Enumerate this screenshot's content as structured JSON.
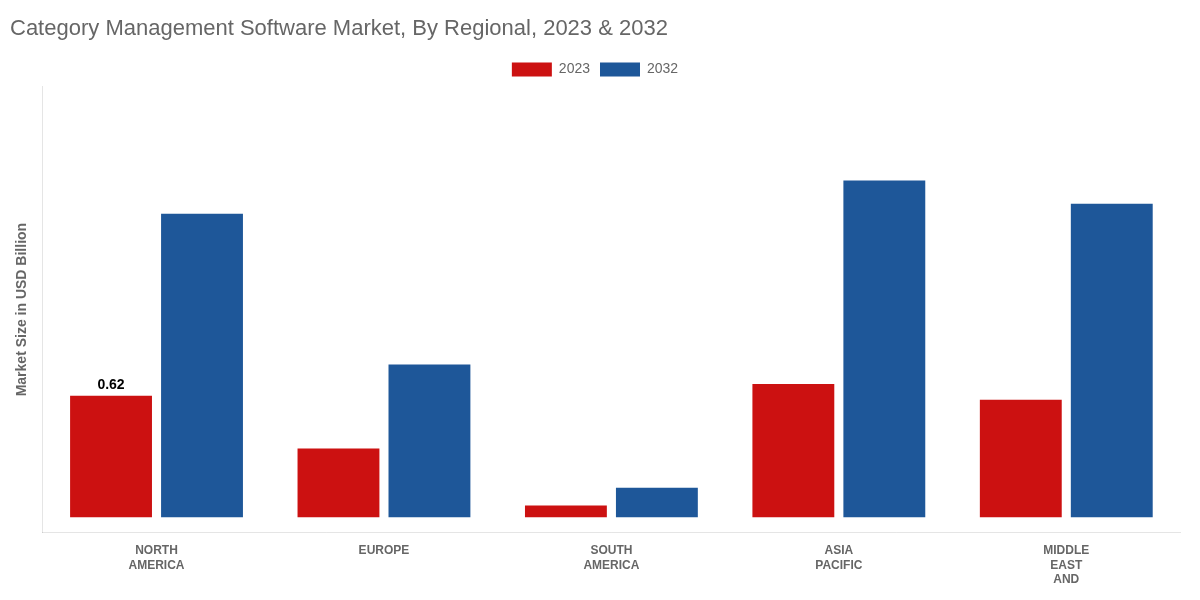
{
  "chart_data": {
    "type": "bar",
    "title": "Category Management Software Market, By Regional, 2023 & 2032",
    "y_label": "Market Size in USD Billion",
    "categories": [
      "NORTH\nAMERICA",
      "EUROPE",
      "SOUTH\nAMERICA",
      "ASIA\nPACIFIC",
      "MIDDLE\nEAST\nAND"
    ],
    "series": [
      {
        "name": "2023",
        "color": "#cc1111",
        "values": [
          0.62,
          0.35,
          0.06,
          0.68,
          0.6
        ]
      },
      {
        "name": "2032",
        "color": "#1e5799",
        "values": [
          1.55,
          0.78,
          0.15,
          1.72,
          1.6
        ]
      }
    ],
    "ylim": [
      -0.08,
      2.2
    ],
    "grid": false,
    "legend": "top",
    "tick_labels": "x",
    "annotations": [
      {
        "text": "0.62",
        "x": "NORTH\nAMERICA",
        "series": "2023",
        "y": 0.62
      }
    ]
  }
}
